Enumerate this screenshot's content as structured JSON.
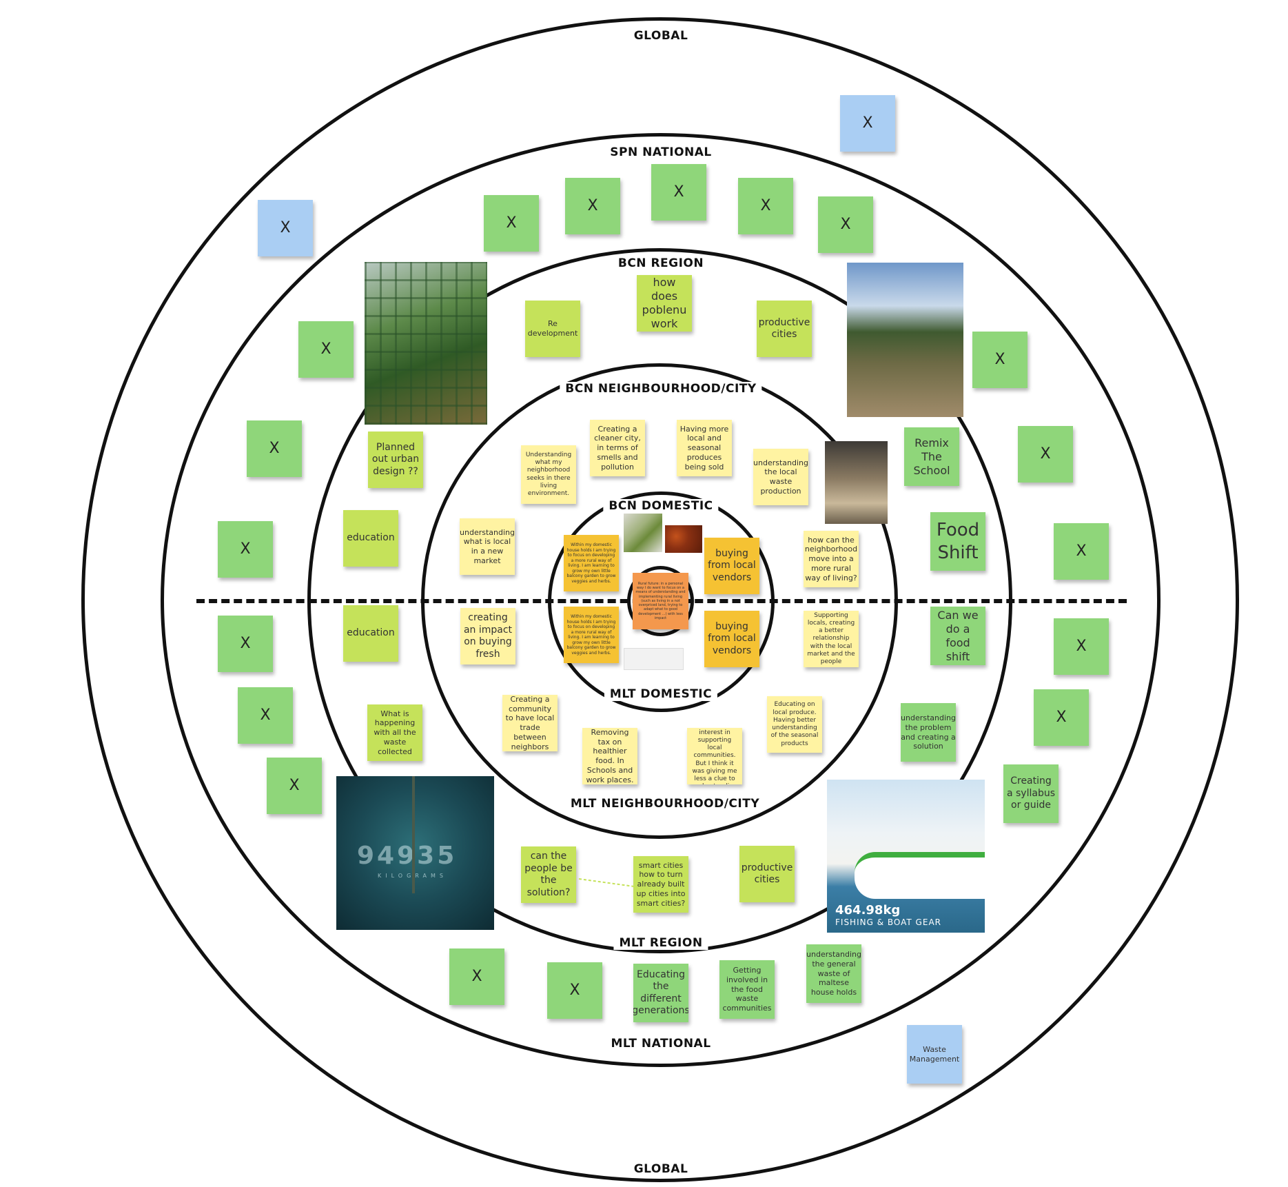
{
  "rings": {
    "global_top": "GLOBAL",
    "spn_national": "SPN NATIONAL",
    "bcn_region": "BCN REGION",
    "bcn_neighbourhood": "BCN NEIGHBOURHOOD/CITY",
    "bcn_domestic": "BCN DOMESTIC",
    "mlt_domestic": "MLT DOMESTIC",
    "mlt_neighbourhood": "MLT NEIGHBOURHOOD/CITY",
    "mlt_region": "MLT REGION",
    "mlt_national": "MLT NATIONAL",
    "global_bottom": "GLOBAL"
  },
  "x": "X",
  "notes": {
    "how_does_poblenu": "how does poblenu work",
    "re_development": "Re development",
    "productive_cities_top": "productive cities",
    "planned_out": "Planned out urban design ??",
    "education_top": "education",
    "remix": "Remix The School",
    "food_shift": "Food Shift",
    "creating_cleaner": "Creating a cleaner city, in terms of smells and pollution",
    "having_more_local": "Having more local and seasonal produces being sold",
    "understanding_what_my": "Understanding what my neighborhood seeks in there living environment.",
    "understanding_local_waste": "understanding the local waste production",
    "understanding_what_is_local": "understanding what is local in a new market",
    "how_can_neighborhood": "how can the neighborhood move into a more rural way of living?",
    "within_domestic_1": "Within my domestic house holds I am trying to focus on developing a more rural way of living. I am learning to grow my own little balcony garden to grow veggies and herbs.",
    "within_domestic_2": "Within my domestic house holds I am trying to focus on developing a more rural way of living. I am learning to grow my own little balcony garden to grow veggies and herbs.",
    "buying_local_top": "buying from local vendors",
    "buying_local_bottom": "buying from local vendors",
    "rural_future": "Rural future: in a personal way I do want to focus on a means of understanding and implementing rural living (such as living in a not overpriced land, trying to adapt what to good development ...) with less impact",
    "education_bottom": "education",
    "creating_impact": "creating an impact on buying fresh",
    "supporting_locals": "Supporting locals, creating a better relationship with the local market and the people",
    "can_we_food_shift": "Can we do a food shift",
    "what_is_happening": "What is happening with all the waste collected",
    "creating_community": "Creating a community to have local trade between neighbors",
    "removing_tax": "Removing tax on healthier food. In Schools and work places.",
    "maltese_neighbourhood": "In the maltese neighbourhood we have a big interest in supporting local communities. But I think it was giving me less a clue to understanding the importance of products.",
    "educating_local": "Educating on local produce. Having better understanding of the seasonal products",
    "understanding_problem": "understanding the problem and creating a solution",
    "creating_syllabus": "Creating a syllabus or guide",
    "can_the_people": "can the people be the solution?",
    "smart_cities": "smart cities how to turn already built up cities into smart cities?",
    "productive_cities_bottom": "productive cities",
    "educating_generations": "Educating the different generations",
    "getting_involved": "Getting involved in the food waste communities",
    "understanding_general_waste": "understanding the general waste of maltese house holds",
    "waste_management": "Waste Management"
  },
  "photos": {
    "ocean_number": "94935",
    "ocean_sub": "KILOGRAMS",
    "boat_weight": "464.98kg",
    "boat_caption": "FISHING & BOAT GEAR"
  },
  "colors": {
    "green": "#8fd67a",
    "lime": "#c5e25a",
    "light_yellow": "#fff3a2",
    "orange_yellow": "#f5c233",
    "orange": "#f4984d",
    "blue": "#aacef3"
  }
}
